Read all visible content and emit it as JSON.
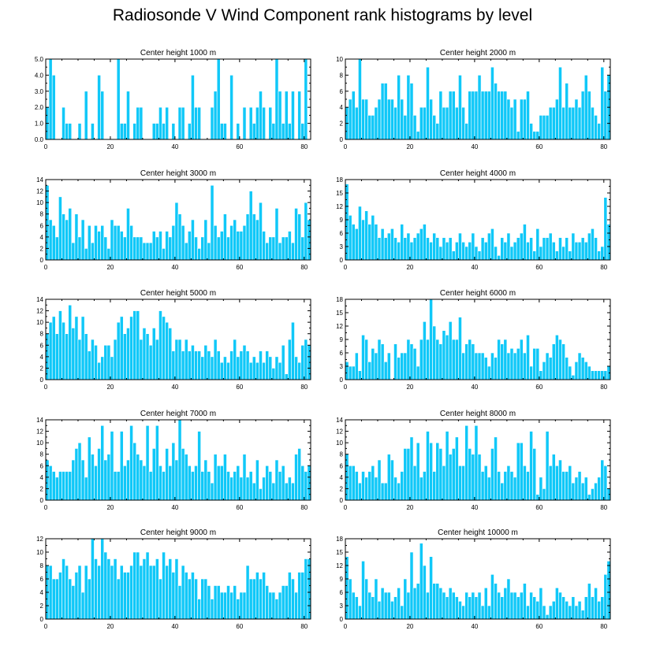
{
  "title": "Radiosonde V Wind Component rank histograms by level",
  "colors": {
    "bar": "#10c8f8",
    "bar_edge": "#ffffff",
    "axis": "#000000"
  },
  "chart_data": [
    {
      "type": "bar",
      "title": "Center height 1000 m",
      "ylim": [
        0,
        5
      ],
      "yticks": [
        "0.0",
        "1.0",
        "2.0",
        "3.0",
        "4.0",
        "5.0"
      ],
      "yticks_values": [
        0,
        1,
        2,
        3,
        4,
        5
      ],
      "xlim": [
        0,
        82
      ],
      "xticks": [
        0,
        20,
        40,
        60,
        80
      ],
      "values": [
        2,
        5,
        4,
        0,
        0,
        2,
        1,
        1,
        0,
        0,
        1,
        0,
        3,
        0,
        1,
        0,
        4,
        3,
        0,
        0,
        0,
        0,
        5,
        1,
        1,
        3,
        0,
        1,
        2,
        2,
        0,
        0,
        0,
        1,
        1,
        2,
        1,
        2,
        0,
        1,
        0,
        2,
        2,
        0,
        1,
        4,
        2,
        2,
        0,
        0,
        0,
        2,
        3,
        5,
        1,
        1,
        0,
        4,
        0,
        1,
        0,
        2,
        0,
        2,
        1,
        2,
        3,
        2,
        0,
        2,
        1,
        5,
        3,
        1,
        3,
        1,
        3,
        0,
        3,
        1,
        5,
        0
      ]
    },
    {
      "type": "bar",
      "title": "Center height 2000 m",
      "ylim": [
        0,
        10
      ],
      "yticks": [
        "0",
        "2",
        "4",
        "6",
        "8",
        "10"
      ],
      "yticks_values": [
        0,
        2,
        4,
        6,
        8,
        10
      ],
      "xlim": [
        0,
        82
      ],
      "xticks": [
        0,
        20,
        40,
        60,
        80
      ],
      "values": [
        4,
        5,
        6,
        4,
        10,
        5,
        5,
        3,
        3,
        4,
        5,
        7,
        7,
        5,
        5,
        4,
        8,
        5,
        3,
        8,
        7,
        3,
        1,
        4,
        4,
        9,
        5,
        3,
        2,
        6,
        4,
        4,
        6,
        6,
        4,
        8,
        4,
        2,
        6,
        6,
        6,
        8,
        6,
        6,
        6,
        9,
        7,
        6,
        6,
        6,
        5,
        4,
        5,
        1,
        5,
        5,
        6,
        2,
        1,
        1,
        3,
        3,
        3,
        4,
        4,
        5,
        9,
        4,
        7,
        4,
        4,
        5,
        4,
        6,
        8,
        6,
        4,
        3,
        2,
        9,
        6,
        8
      ]
    },
    {
      "type": "bar",
      "title": "Center height 3000 m",
      "ylim": [
        0,
        14
      ],
      "yticks": [
        "0",
        "2",
        "4",
        "6",
        "8",
        "10",
        "12",
        "14"
      ],
      "yticks_values": [
        0,
        2,
        4,
        6,
        8,
        10,
        12,
        14
      ],
      "xlim": [
        0,
        82
      ],
      "xticks": [
        0,
        20,
        40,
        60,
        80
      ],
      "values": [
        13,
        7,
        6,
        4,
        11,
        8,
        7,
        9,
        3,
        8,
        4,
        7,
        2,
        6,
        3,
        6,
        5,
        6,
        4,
        2,
        7,
        6,
        6,
        5,
        4,
        9,
        6,
        4,
        4,
        4,
        3,
        3,
        3,
        5,
        4,
        5,
        2,
        5,
        4,
        6,
        10,
        8,
        6,
        3,
        5,
        7,
        4,
        2,
        4,
        7,
        3,
        13,
        6,
        4,
        5,
        8,
        4,
        6,
        7,
        5,
        5,
        6,
        8,
        12,
        8,
        7,
        10,
        5,
        3,
        4,
        4,
        9,
        3,
        4,
        4,
        5,
        3,
        9,
        8,
        4,
        10,
        7
      ]
    },
    {
      "type": "bar",
      "title": "Center height 4000 m",
      "ylim": [
        0,
        18
      ],
      "yticks": [
        "0",
        "3",
        "6",
        "9",
        "12",
        "15",
        "18"
      ],
      "yticks_values": [
        0,
        3,
        6,
        9,
        12,
        15,
        18
      ],
      "xlim": [
        0,
        82
      ],
      "xticks": [
        0,
        20,
        40,
        60,
        80
      ],
      "values": [
        17,
        10,
        8,
        7,
        12,
        9,
        11,
        8,
        10,
        8,
        5,
        7,
        5,
        6,
        7,
        5,
        4,
        8,
        5,
        6,
        4,
        5,
        6,
        7,
        8,
        5,
        4,
        6,
        5,
        3,
        5,
        4,
        5,
        2,
        4,
        6,
        4,
        3,
        4,
        6,
        3,
        2,
        5,
        4,
        6,
        7,
        3,
        1,
        5,
        4,
        6,
        3,
        4,
        5,
        6,
        8,
        4,
        5,
        2,
        7,
        3,
        5,
        5,
        6,
        4,
        2,
        5,
        3,
        5,
        2,
        6,
        4,
        4,
        5,
        4,
        6,
        7,
        5,
        2,
        3,
        14,
        8
      ]
    },
    {
      "type": "bar",
      "title": "Center height 5000 m",
      "ylim": [
        0,
        14
      ],
      "yticks": [
        "0",
        "2",
        "4",
        "6",
        "8",
        "10",
        "12",
        "14"
      ],
      "yticks_values": [
        0,
        2,
        4,
        6,
        8,
        10,
        12,
        14
      ],
      "xlim": [
        0,
        82
      ],
      "xticks": [
        0,
        20,
        40,
        60,
        80
      ],
      "values": [
        8,
        10,
        11,
        8,
        12,
        10,
        8,
        13,
        9,
        11,
        7,
        11,
        8,
        5,
        7,
        6,
        3,
        4,
        6,
        6,
        4,
        7,
        10,
        11,
        8,
        9,
        11,
        12,
        12,
        7,
        9,
        8,
        6,
        9,
        7,
        12,
        11,
        10,
        9,
        5,
        7,
        7,
        5,
        7,
        5,
        6,
        5,
        5,
        4,
        6,
        5,
        4,
        7,
        5,
        3,
        4,
        3,
        5,
        7,
        4,
        5,
        6,
        5,
        3,
        4,
        3,
        5,
        3,
        5,
        4,
        2,
        4,
        3,
        6,
        1,
        7,
        10,
        4,
        3,
        6,
        7,
        6
      ]
    },
    {
      "type": "bar",
      "title": "Center height 6000 m",
      "ylim": [
        0,
        18
      ],
      "yticks": [
        "0",
        "3",
        "6",
        "9",
        "12",
        "15",
        "18"
      ],
      "yticks_values": [
        0,
        3,
        6,
        9,
        12,
        15,
        18
      ],
      "xlim": [
        0,
        82
      ],
      "xticks": [
        0,
        20,
        40,
        60,
        80
      ],
      "values": [
        4,
        3,
        3,
        6,
        2,
        10,
        9,
        4,
        7,
        6,
        9,
        8,
        4,
        6,
        0,
        8,
        5,
        6,
        6,
        9,
        8,
        7,
        3,
        9,
        13,
        9,
        18,
        12,
        9,
        8,
        11,
        10,
        13,
        9,
        9,
        14,
        6,
        8,
        9,
        8,
        6,
        6,
        6,
        5,
        3,
        6,
        5,
        9,
        8,
        9,
        6,
        7,
        6,
        7,
        9,
        6,
        10,
        3,
        7,
        7,
        2,
        4,
        6,
        5,
        8,
        10,
        9,
        8,
        5,
        3,
        1,
        4,
        6,
        5,
        4,
        3,
        2,
        2,
        2,
        2,
        2,
        3
      ]
    },
    {
      "type": "bar",
      "title": "Center height 7000 m",
      "ylim": [
        0,
        14
      ],
      "yticks": [
        "0",
        "2",
        "4",
        "6",
        "8",
        "10",
        "12",
        "14"
      ],
      "yticks_values": [
        0,
        2,
        4,
        6,
        8,
        10,
        12,
        14
      ],
      "xlim": [
        0,
        82
      ],
      "xticks": [
        0,
        20,
        40,
        60,
        80
      ],
      "values": [
        7,
        6,
        5,
        4,
        5,
        5,
        5,
        5,
        7,
        9,
        10,
        7,
        4,
        11,
        8,
        6,
        9,
        13,
        7,
        8,
        12,
        5,
        5,
        12,
        6,
        7,
        13,
        10,
        8,
        7,
        6,
        13,
        5,
        9,
        13,
        6,
        5,
        9,
        6,
        10,
        7,
        14,
        9,
        8,
        6,
        5,
        6,
        12,
        5,
        7,
        5,
        3,
        8,
        6,
        6,
        8,
        5,
        4,
        5,
        6,
        4,
        8,
        4,
        5,
        3,
        7,
        2,
        4,
        6,
        5,
        3,
        7,
        5,
        6,
        3,
        4,
        3,
        8,
        9,
        6,
        5,
        6
      ]
    },
    {
      "type": "bar",
      "title": "Center height 8000 m",
      "ylim": [
        0,
        14
      ],
      "yticks": [
        "0",
        "2",
        "4",
        "6",
        "8",
        "10",
        "12",
        "14"
      ],
      "yticks_values": [
        0,
        2,
        4,
        6,
        8,
        10,
        12,
        14
      ],
      "xlim": [
        0,
        82
      ],
      "xticks": [
        0,
        20,
        40,
        60,
        80
      ],
      "values": [
        8,
        6,
        6,
        5,
        3,
        5,
        4,
        5,
        6,
        4,
        7,
        3,
        3,
        8,
        7,
        4,
        3,
        5,
        9,
        9,
        11,
        6,
        10,
        4,
        5,
        12,
        10,
        5,
        10,
        9,
        6,
        12,
        8,
        9,
        11,
        6,
        6,
        13,
        9,
        8,
        13,
        8,
        5,
        6,
        4,
        9,
        11,
        5,
        3,
        5,
        6,
        5,
        4,
        10,
        10,
        6,
        5,
        12,
        9,
        1,
        4,
        2,
        12,
        6,
        8,
        6,
        7,
        5,
        5,
        6,
        3,
        4,
        5,
        3,
        4,
        1,
        2,
        3,
        4,
        7,
        6,
        2
      ]
    },
    {
      "type": "bar",
      "title": "Center height 9000 m",
      "ylim": [
        0,
        12
      ],
      "yticks": [
        "0",
        "2",
        "4",
        "6",
        "8",
        "10",
        "12"
      ],
      "yticks_values": [
        0,
        2,
        4,
        6,
        8,
        10,
        12
      ],
      "xlim": [
        0,
        82
      ],
      "xticks": [
        0,
        20,
        40,
        60,
        80
      ],
      "values": [
        8,
        8,
        6,
        6,
        7,
        9,
        8,
        6,
        5,
        7,
        8,
        4,
        8,
        6,
        12,
        9,
        8,
        12,
        10,
        9,
        8,
        9,
        6,
        8,
        7,
        7,
        8,
        10,
        10,
        8,
        9,
        10,
        8,
        8,
        9,
        6,
        10,
        8,
        9,
        7,
        9,
        5,
        8,
        7,
        6,
        7,
        6,
        3,
        6,
        6,
        5,
        3,
        5,
        5,
        4,
        4,
        5,
        4,
        5,
        3,
        4,
        4,
        8,
        6,
        6,
        7,
        6,
        7,
        5,
        4,
        4,
        3,
        4,
        5,
        5,
        7,
        6,
        4,
        7,
        7,
        9,
        9
      ]
    },
    {
      "type": "bar",
      "title": "Center height 10000 m",
      "ylim": [
        0,
        18
      ],
      "yticks": [
        "0",
        "3",
        "6",
        "9",
        "12",
        "15",
        "18"
      ],
      "yticks_values": [
        0,
        3,
        6,
        9,
        12,
        15,
        18
      ],
      "xlim": [
        0,
        82
      ],
      "xticks": [
        0,
        20,
        40,
        60,
        80
      ],
      "values": [
        14,
        9,
        6,
        5,
        3,
        13,
        9,
        6,
        5,
        9,
        4,
        7,
        6,
        6,
        4,
        5,
        7,
        3,
        9,
        6,
        15,
        7,
        8,
        17,
        12,
        6,
        14,
        8,
        8,
        7,
        6,
        5,
        7,
        6,
        5,
        4,
        3,
        6,
        5,
        6,
        5,
        6,
        3,
        7,
        3,
        10,
        8,
        6,
        5,
        7,
        9,
        6,
        6,
        5,
        6,
        8,
        3,
        6,
        5,
        4,
        7,
        3,
        1,
        3,
        4,
        7,
        6,
        5,
        4,
        3,
        5,
        3,
        4,
        2,
        5,
        8,
        5,
        7,
        4,
        5,
        10,
        13
      ]
    }
  ]
}
